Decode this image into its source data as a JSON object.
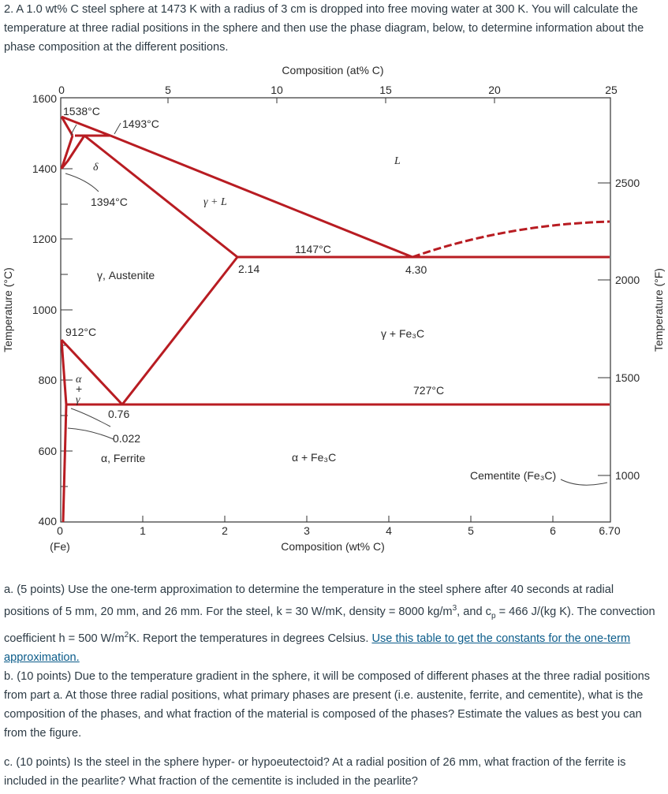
{
  "intro": "2. A 1.0 wt% C steel sphere at 1473 K with a radius of 3 cm is dropped into free moving water at 300 K. You will calculate the temperature at three radial positions in the sphere and then use the phase diagram, below, to determine information about the phase composition at the different positions.",
  "figure": {
    "top_axis_title": "Composition (at% C)",
    "top_ticks": [
      "0",
      "5",
      "10",
      "15",
      "20",
      "25"
    ],
    "bottom_axis_title": "Composition (wt% C)",
    "bottom_ticks": [
      "0",
      "1",
      "2",
      "3",
      "4",
      "5",
      "6",
      "6.70"
    ],
    "bottom_fe_label": "(Fe)",
    "left_axis_title": "Temperature (°C)",
    "left_ticks": [
      "1600",
      "1400",
      "1200",
      "1000",
      "800",
      "600",
      "400"
    ],
    "right_axis_title": "Temperature (°F)",
    "right_ticks": [
      "2500",
      "2000",
      "1500",
      "1000"
    ],
    "labels": {
      "t1538": "1538°C",
      "t1493": "1493°C",
      "t1394": "1394°C",
      "t1147": "1147°C",
      "t912": "912°C",
      "t727": "727°C",
      "c214": "2.14",
      "c430": "4.30",
      "c076": "0.76",
      "c0022": "0.022",
      "delta": "δ",
      "liquid": "L",
      "gamma_l": "γ + L",
      "austenite": "γ, Austenite",
      "gamma_fe3c": "γ + Fe₃C",
      "alpha_fe3c": "α + Fe₃C",
      "ferrite": "α, Ferrite",
      "ag_a": "α",
      "ag_p": "+",
      "ag_g": "γ",
      "cementite": "Cementite (Fe₃C)"
    },
    "colors": {
      "phase_line": "#b81c22",
      "axis": "#333333"
    }
  },
  "question_a": {
    "text1": "a. (5 points) Use the one-term approximation to determine the temperature in the steel sphere after 40 seconds at radial positions of 5 mm, 20 mm, and 26 mm. For the steel, k = 30 W/mK, density = 8000 kg/m",
    "sup3": "3",
    "text2": ", and c",
    "sub_p": "p",
    "text3": " = 466 J/(kg K). The convection coefficient h = 500 W/m",
    "sup2": "2",
    "text4": "K. Report the temperatures in degrees Celsius. ",
    "link": "Use this table to get the constants for the one-term approximation."
  },
  "question_b": "b. (10 points) Due to the temperature gradient in the sphere, it will be composed of different phases at the three radial positions from part a. At those three radial positions, what primary phases are present (i.e. austenite, ferrite, and cementite), what is the composition of the phases, and what fraction of the material is composed of the phases? Estimate the values as best you can from the figure.",
  "question_c": "c. (10 points) Is the steel in the sphere hyper- or hypoeutectoid? At a radial position of 26 mm, what fraction of the ferrite is included in the pearlite? What fraction of the cementite is included in the pearlite?"
}
